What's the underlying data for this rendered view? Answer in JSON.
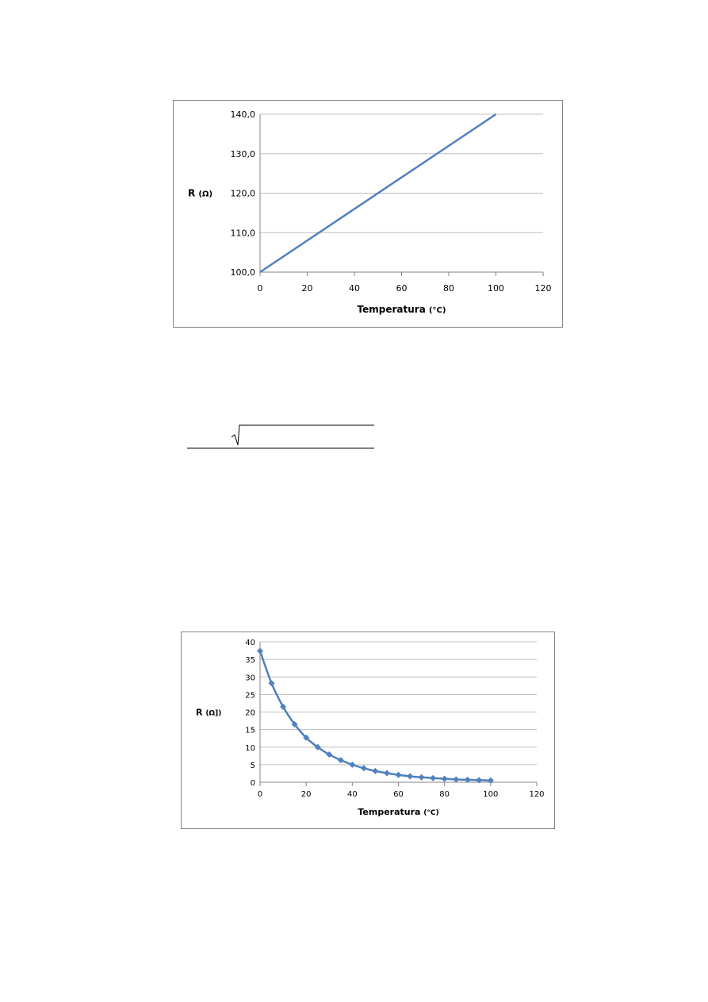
{
  "colors": {
    "series": "#4F81BD",
    "grid": "#C0C0C0",
    "frame": "#868686"
  },
  "chart_data": [
    {
      "type": "line",
      "xlabel": "Temperatura (°C)",
      "ylabel": "R (Ω)",
      "xlim": [
        0,
        120
      ],
      "ylim": [
        100,
        140
      ],
      "x_ticks": [
        "0",
        "20",
        "40",
        "60",
        "80",
        "100",
        "120"
      ],
      "y_ticks": [
        "100,0",
        "110,0",
        "120,0",
        "130,0",
        "140,0"
      ],
      "grid": true,
      "markers": false,
      "series": [
        {
          "x": [
            0,
            100
          ],
          "values": [
            100,
            140
          ]
        }
      ]
    },
    {
      "type": "line",
      "xlabel": "Temperatura (°C)",
      "ylabel": "R (Ω])",
      "xlim": [
        0,
        120
      ],
      "ylim": [
        0,
        40
      ],
      "x_ticks": [
        "0",
        "20",
        "40",
        "60",
        "80",
        "100",
        "120"
      ],
      "y_ticks": [
        "0",
        "5",
        "10",
        "15",
        "20",
        "25",
        "30",
        "35",
        "40"
      ],
      "grid": true,
      "markers": true,
      "series": [
        {
          "x": [
            0,
            5,
            10,
            15,
            20,
            25,
            30,
            35,
            40,
            45,
            50,
            55,
            60,
            65,
            70,
            75,
            80,
            85,
            90,
            95,
            100
          ],
          "values": [
            37.4,
            28.2,
            21.5,
            16.5,
            12.7,
            10.0,
            7.9,
            6.3,
            5.0,
            4.0,
            3.2,
            2.6,
            2.1,
            1.7,
            1.4,
            1.2,
            1.0,
            0.8,
            0.7,
            0.6,
            0.5
          ]
        }
      ]
    }
  ]
}
